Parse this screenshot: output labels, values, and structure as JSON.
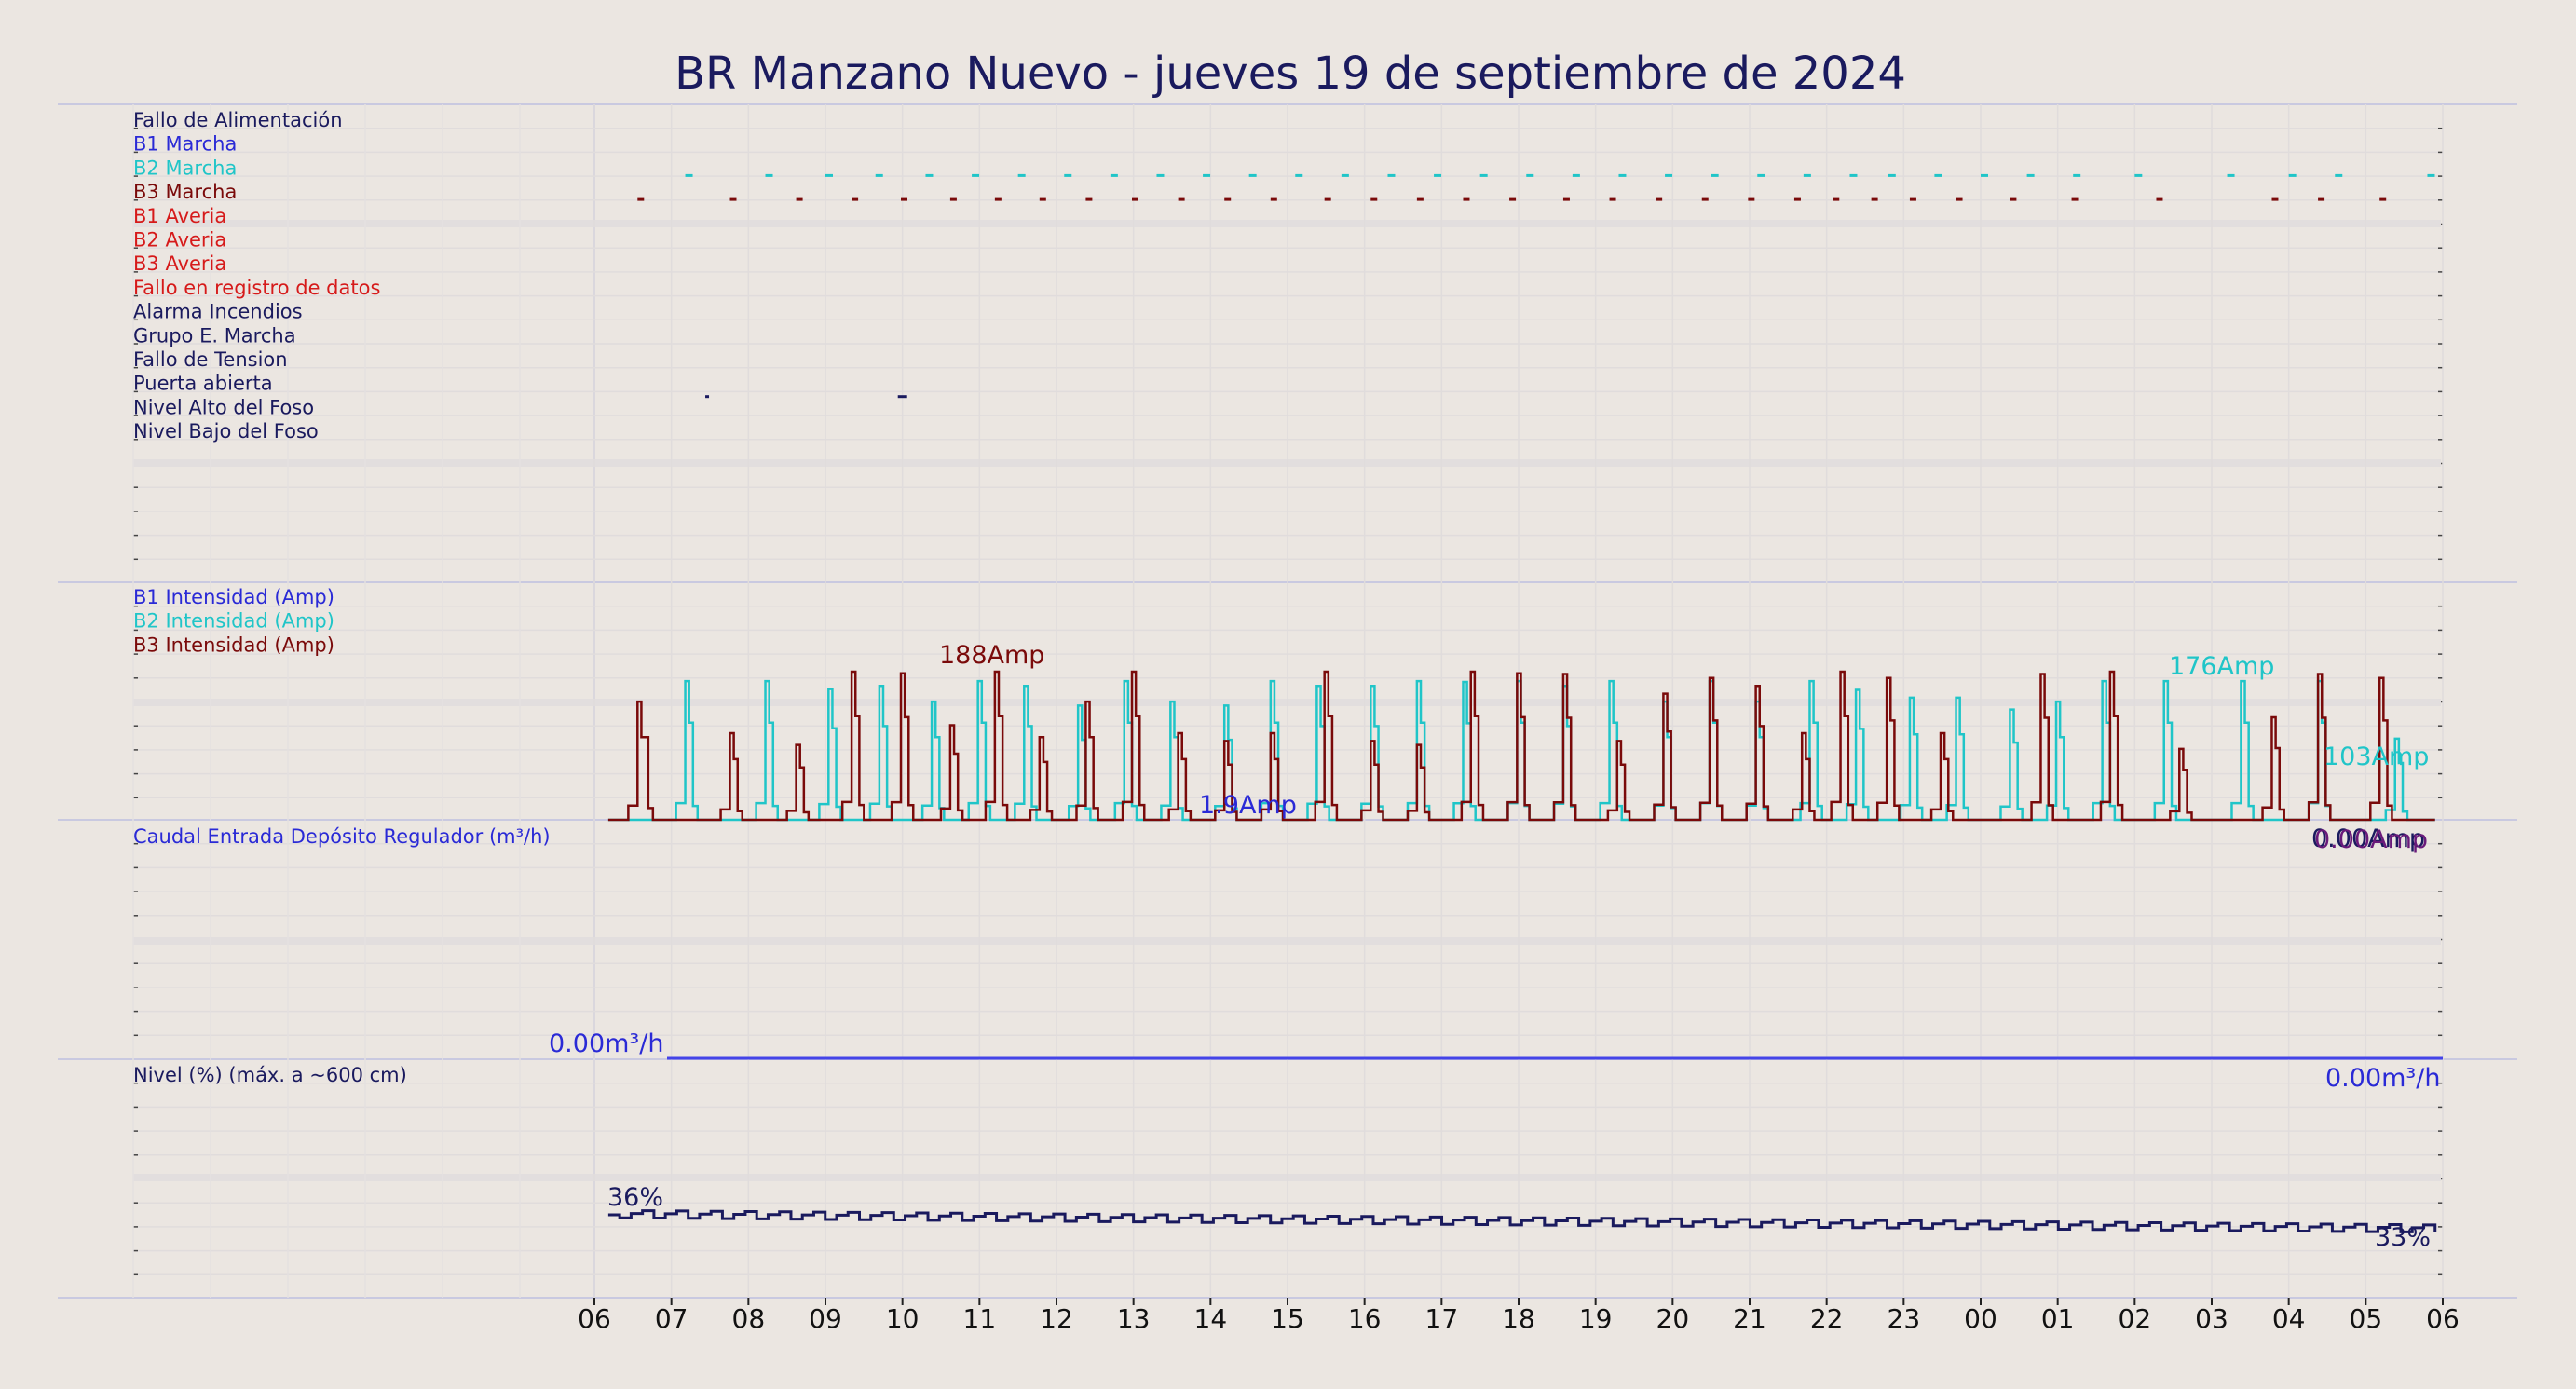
{
  "title": "BR Manzano Nuevo   -   jueves 19 de septiembre de 2024",
  "colors": {
    "background": "#ebe6e1",
    "navy": "#1a1a5e",
    "blue": "#2a2ad6",
    "cyan": "#20c5c8",
    "darkred": "#7a0a0a",
    "red": "#d61a1a"
  },
  "status_panel": {
    "labels": [
      {
        "text": "Fallo de Alimentación",
        "color": "navy"
      },
      {
        "text": "B1 Marcha",
        "color": "blue"
      },
      {
        "text": "B2 Marcha",
        "color": "cyan"
      },
      {
        "text": "B3 Marcha",
        "color": "darkred"
      },
      {
        "text": "B1 Averia",
        "color": "red"
      },
      {
        "text": "B2 Averia",
        "color": "red"
      },
      {
        "text": "B3 Averia",
        "color": "red"
      },
      {
        "text": "Fallo en registro de datos",
        "color": "red"
      },
      {
        "text": "Alarma Incendios",
        "color": "navy"
      },
      {
        "text": "Grupo E. Marcha",
        "color": "navy"
      },
      {
        "text": "Fallo de Tension",
        "color": "navy"
      },
      {
        "text": "Puerta abierta",
        "color": "navy"
      },
      {
        "text": "Nivel Alto del Foso",
        "color": "navy"
      },
      {
        "text": "Nivel Bajo del Foso",
        "color": "navy"
      }
    ]
  },
  "current_panel": {
    "labels": [
      {
        "text": "B1 Intensidad (Amp)",
        "color": "blue"
      },
      {
        "text": "B2 Intensidad (Amp)",
        "color": "cyan"
      },
      {
        "text": "B3 Intensidad (Amp)",
        "color": "darkred"
      }
    ],
    "annotations": {
      "b3_max": "188Amp",
      "b2_max": "176Amp",
      "b2_last": "103Amp",
      "b1_max": "1.9Amp",
      "last_a": "0.00Amp",
      "last_b": "0.00Amp"
    }
  },
  "flow_panel": {
    "label": "Caudal Entrada Depósito Regulador (m³/h)",
    "start_value": "0.00m³/h",
    "end_value": "0.00m³/h"
  },
  "level_panel": {
    "label": "Nivel (%) (máx. a ~600 cm)",
    "start_value": "36%",
    "end_value": "33%"
  },
  "x_ticks": [
    "06",
    "07",
    "08",
    "09",
    "10",
    "11",
    "12",
    "13",
    "14",
    "15",
    "16",
    "17",
    "18",
    "19",
    "20",
    "21",
    "22",
    "23",
    "00",
    "01",
    "02",
    "03",
    "04",
    "05",
    "06"
  ],
  "chart_data": {
    "type": "line",
    "title": "BR Manzano Nuevo   -   jueves 19 de septiembre de 2024",
    "x_range_hours": [
      6,
      30
    ],
    "x_tick_labels": [
      "06",
      "07",
      "08",
      "09",
      "10",
      "11",
      "12",
      "13",
      "14",
      "15",
      "16",
      "17",
      "18",
      "19",
      "20",
      "21",
      "22",
      "23",
      "00",
      "01",
      "02",
      "03",
      "04",
      "05",
      "06"
    ],
    "current_ylim": [
      0,
      220
    ],
    "b3_current_cycles": [
      {
        "start": 6.56,
        "end": 6.7,
        "peak": 150
      },
      {
        "start": 7.76,
        "end": 7.86,
        "peak": 110
      },
      {
        "start": 8.62,
        "end": 8.72,
        "peak": 95
      },
      {
        "start": 9.34,
        "end": 9.44,
        "peak": 188
      },
      {
        "start": 9.98,
        "end": 10.08,
        "peak": 186
      },
      {
        "start": 10.62,
        "end": 10.72,
        "peak": 120
      },
      {
        "start": 11.2,
        "end": 11.3,
        "peak": 188
      },
      {
        "start": 11.78,
        "end": 11.88,
        "peak": 105
      },
      {
        "start": 12.38,
        "end": 12.48,
        "peak": 150
      },
      {
        "start": 12.98,
        "end": 13.08,
        "peak": 188
      },
      {
        "start": 13.58,
        "end": 13.68,
        "peak": 110
      },
      {
        "start": 14.18,
        "end": 14.28,
        "peak": 100
      },
      {
        "start": 14.78,
        "end": 14.88,
        "peak": 110
      },
      {
        "start": 15.48,
        "end": 15.58,
        "peak": 188
      },
      {
        "start": 16.08,
        "end": 16.18,
        "peak": 100
      },
      {
        "start": 16.68,
        "end": 16.78,
        "peak": 95
      },
      {
        "start": 17.38,
        "end": 17.48,
        "peak": 188
      },
      {
        "start": 17.98,
        "end": 18.08,
        "peak": 186
      },
      {
        "start": 18.58,
        "end": 18.68,
        "peak": 185
      },
      {
        "start": 19.28,
        "end": 19.38,
        "peak": 100
      },
      {
        "start": 19.88,
        "end": 19.98,
        "peak": 160
      },
      {
        "start": 20.48,
        "end": 20.58,
        "peak": 180
      },
      {
        "start": 21.08,
        "end": 21.18,
        "peak": 170
      },
      {
        "start": 21.68,
        "end": 21.78,
        "peak": 110
      },
      {
        "start": 22.18,
        "end": 22.28,
        "peak": 188
      },
      {
        "start": 22.78,
        "end": 22.88,
        "peak": 180
      },
      {
        "start": 23.48,
        "end": 23.58,
        "peak": 110
      },
      {
        "start": 24.78,
        "end": 24.88,
        "peak": 185
      },
      {
        "start": 25.68,
        "end": 25.78,
        "peak": 188
      },
      {
        "start": 26.58,
        "end": 26.68,
        "peak": 90
      },
      {
        "start": 27.78,
        "end": 27.88,
        "peak": 130
      },
      {
        "start": 28.38,
        "end": 28.48,
        "peak": 185
      },
      {
        "start": 29.18,
        "end": 29.28,
        "peak": 180
      }
    ],
    "b2_current_cycles": [
      {
        "start": 7.18,
        "end": 7.28,
        "peak": 176
      },
      {
        "start": 8.22,
        "end": 8.32,
        "peak": 176
      },
      {
        "start": 9.04,
        "end": 9.14,
        "peak": 166
      },
      {
        "start": 9.7,
        "end": 9.8,
        "peak": 170
      },
      {
        "start": 10.38,
        "end": 10.48,
        "peak": 150
      },
      {
        "start": 10.98,
        "end": 11.08,
        "peak": 176
      },
      {
        "start": 11.58,
        "end": 11.68,
        "peak": 170
      },
      {
        "start": 12.28,
        "end": 12.38,
        "peak": 145
      },
      {
        "start": 12.88,
        "end": 12.98,
        "peak": 176
      },
      {
        "start": 13.48,
        "end": 13.58,
        "peak": 150
      },
      {
        "start": 14.18,
        "end": 14.28,
        "peak": 145
      },
      {
        "start": 14.78,
        "end": 14.88,
        "peak": 176
      },
      {
        "start": 15.38,
        "end": 15.48,
        "peak": 170
      },
      {
        "start": 16.08,
        "end": 16.18,
        "peak": 170
      },
      {
        "start": 16.68,
        "end": 16.78,
        "peak": 176
      },
      {
        "start": 17.28,
        "end": 17.38,
        "peak": 175
      },
      {
        "start": 17.98,
        "end": 18.08,
        "peak": 176
      },
      {
        "start": 18.58,
        "end": 18.68,
        "peak": 170
      },
      {
        "start": 19.18,
        "end": 19.28,
        "peak": 176
      },
      {
        "start": 19.88,
        "end": 19.98,
        "peak": 150
      },
      {
        "start": 20.48,
        "end": 20.58,
        "peak": 176
      },
      {
        "start": 21.08,
        "end": 21.18,
        "peak": 150
      },
      {
        "start": 21.78,
        "end": 21.88,
        "peak": 176
      },
      {
        "start": 22.38,
        "end": 22.48,
        "peak": 165
      },
      {
        "start": 23.08,
        "end": 23.18,
        "peak": 155
      },
      {
        "start": 23.68,
        "end": 23.78,
        "peak": 155
      },
      {
        "start": 24.38,
        "end": 24.48,
        "peak": 140
      },
      {
        "start": 24.98,
        "end": 25.08,
        "peak": 150
      },
      {
        "start": 25.58,
        "end": 25.68,
        "peak": 176
      },
      {
        "start": 26.38,
        "end": 26.48,
        "peak": 176
      },
      {
        "start": 27.38,
        "end": 27.48,
        "peak": 176
      },
      {
        "start": 28.38,
        "end": 28.48,
        "peak": 176
      },
      {
        "start": 29.38,
        "end": 29.48,
        "peak": 103
      }
    ],
    "b2_marcha_dashes": [
      7.18,
      8.22,
      9.0,
      9.65,
      10.3,
      10.9,
      11.5,
      12.1,
      12.7,
      13.3,
      13.9,
      14.5,
      15.1,
      15.7,
      16.3,
      16.9,
      17.5,
      18.1,
      18.7,
      19.3,
      19.9,
      20.5,
      21.1,
      21.7,
      22.3,
      22.8,
      23.4,
      24.0,
      24.6,
      25.2,
      26.0,
      27.2,
      28.0,
      28.6,
      29.8
    ],
    "b3_marcha_dashes": [
      6.56,
      7.76,
      8.62,
      9.34,
      9.98,
      10.62,
      11.2,
      11.78,
      12.38,
      12.98,
      13.58,
      14.18,
      14.78,
      15.48,
      16.08,
      16.68,
      17.28,
      17.88,
      18.58,
      19.18,
      19.78,
      20.38,
      20.98,
      21.58,
      22.08,
      22.58,
      23.08,
      23.68,
      24.38,
      25.18,
      26.28,
      27.78,
      28.38,
      29.18
    ],
    "puerta_abierta_marks": [
      7.44,
      9.94
    ],
    "flow_values_m3h": [
      0.0,
      0.0
    ],
    "level_percent": {
      "start": 36,
      "end": 33,
      "mean": 34.5,
      "ylim": [
        0,
        100
      ]
    }
  }
}
